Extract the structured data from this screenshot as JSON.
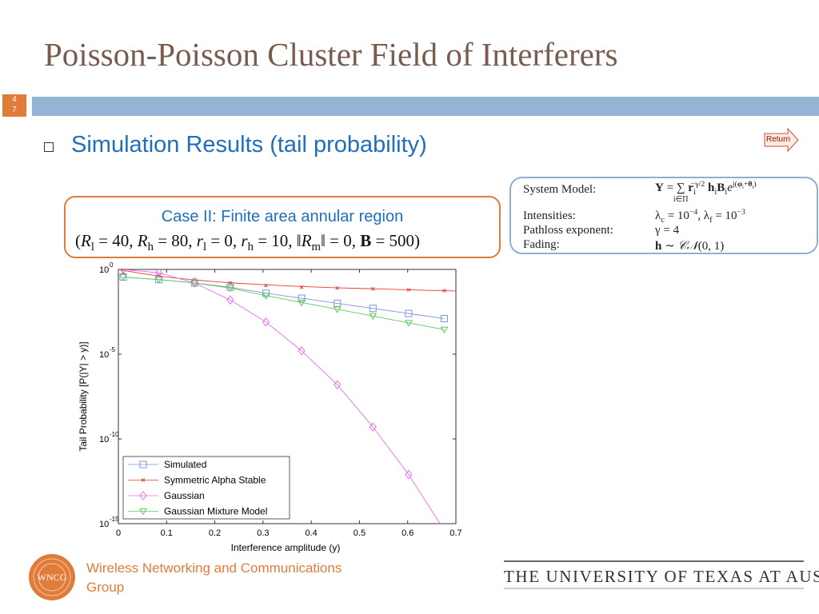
{
  "slide": {
    "title": "Poisson-Poisson Cluster Field of Interferers",
    "page_number_top": "4",
    "page_number_bottom": "7",
    "subtitle": "Simulation Results (tail probability)",
    "return_label": "Return"
  },
  "model_box": {
    "rows": [
      {
        "label": "System Model:",
        "value": "Y = Σ r_i^(−γ/2) h_i B_i e^(j(φ_i+θ_i))",
        "sum_index": "i∈Π"
      },
      {
        "label": "Intensities:",
        "value": "λ_c = 10^−4, λ_f = 10^−3"
      },
      {
        "label": "Pathloss exponent:",
        "value": "γ = 4"
      },
      {
        "label": "Fading:",
        "value": "h ∼ CN(0, 1)"
      }
    ]
  },
  "case_box": {
    "title": "Case II: Finite area annular region",
    "params": "(R_l = 40, R_h = 80, r_l = 0, r_h = 10, ||R_m|| = 0, B = 500)"
  },
  "chart_data": {
    "type": "line",
    "xlabel": "Interference amplitude (y)",
    "ylabel": "Tail Probability [P(|Y| > y)]",
    "xlim": [
      0,
      0.7
    ],
    "ylim_log10": [
      -15,
      0
    ],
    "yscale": "log",
    "x_ticks": [
      "0",
      "0.1",
      "0.2",
      "0.3",
      "0.4",
      "0.5",
      "0.6",
      "0.7"
    ],
    "y_ticks": [
      {
        "base": "10",
        "exp": "0"
      },
      {
        "base": "10",
        "exp": "-5"
      },
      {
        "base": "10",
        "exp": "-10"
      },
      {
        "base": "10",
        "exp": "-15"
      }
    ],
    "legend_position": "bottom-left",
    "series": [
      {
        "name": "Simulated",
        "color": "#7f93df",
        "marker": "square",
        "x": [
          0.01,
          0.084,
          0.158,
          0.232,
          0.306,
          0.38,
          0.454,
          0.528,
          0.602,
          0.676
        ],
        "log10_y": [
          -0.45,
          -0.6,
          -0.8,
          -1.05,
          -1.4,
          -1.7,
          -2.0,
          -2.3,
          -2.6,
          -2.9
        ]
      },
      {
        "name": "Symmetric Alpha Stable",
        "color": "#e63a3a",
        "marker": "x",
        "x": [
          0.01,
          0.084,
          0.158,
          0.232,
          0.306,
          0.38,
          0.454,
          0.528,
          0.602,
          0.676
        ],
        "log10_y": [
          -0.2,
          -0.35,
          -0.6,
          -0.8,
          -0.95,
          -1.05,
          -1.1,
          -1.15,
          -1.2,
          -1.25
        ],
        "curve_x": [
          0.0,
          0.05,
          0.1,
          0.15,
          0.2,
          0.25,
          0.3,
          0.35,
          0.4,
          0.45,
          0.5,
          0.55,
          0.6,
          0.65,
          0.7
        ],
        "curve_log10_y": [
          0.0,
          -0.25,
          -0.45,
          -0.6,
          -0.72,
          -0.82,
          -0.9,
          -0.97,
          -1.03,
          -1.08,
          -1.12,
          -1.16,
          -1.2,
          -1.24,
          -1.27
        ]
      },
      {
        "name": "Gaussian",
        "color": "#ea6ef0",
        "marker": "diamond",
        "x": [
          0.01,
          0.084,
          0.158,
          0.232,
          0.306,
          0.38,
          0.454,
          0.528,
          0.602,
          0.676
        ],
        "log10_y": [
          0.0,
          -0.2,
          -0.8,
          -1.8,
          -3.1,
          -4.8,
          -6.8,
          -9.3,
          -12.1,
          -15.4
        ]
      },
      {
        "name": "Gaussian Mixture Model",
        "color": "#5ec95e",
        "marker": "triangle-down",
        "x": [
          0.01,
          0.084,
          0.158,
          0.232,
          0.306,
          0.38,
          0.454,
          0.528,
          0.602,
          0.676
        ],
        "log10_y": [
          -0.45,
          -0.6,
          -0.8,
          -1.1,
          -1.55,
          -1.95,
          -2.35,
          -2.75,
          -3.15,
          -3.55
        ]
      }
    ]
  },
  "footer": {
    "logo_text": "WNCG",
    "org_line1": "Wireless Networking and Communications",
    "org_line2": "Group",
    "university": "THE UNIVERSITY OF TEXAS AT AUSTIN"
  }
}
